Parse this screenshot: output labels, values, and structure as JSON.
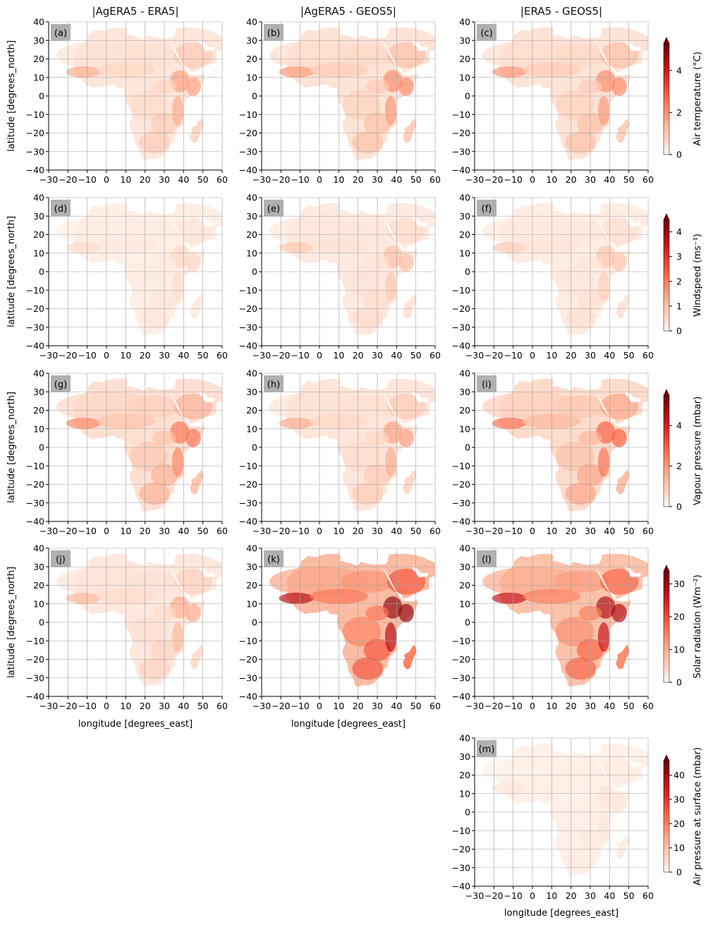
{
  "figure": {
    "column_titles": [
      "|AgERA5 - ERA5|",
      "|AgERA5 - GEOS5|",
      "|ERA5 - GEOS5|"
    ],
    "ylabel": "latitude [degrees_north]",
    "xlabel": "longitude [degrees_east]"
  },
  "chart_data": [
    {
      "type": "heatmap",
      "panel_label": "(a)",
      "title": "|AgERA5 - ERA5|",
      "variable": "Air temperature",
      "xlim": [
        -30,
        60
      ],
      "ylim": [
        -40,
        40
      ],
      "intensity": 0.25
    },
    {
      "type": "heatmap",
      "panel_label": "(b)",
      "title": "|AgERA5 - GEOS5|",
      "variable": "Air temperature",
      "xlim": [
        -30,
        60
      ],
      "ylim": [
        -40,
        40
      ],
      "intensity": 0.3
    },
    {
      "type": "heatmap",
      "panel_label": "(c)",
      "title": "|ERA5 - GEOS5|",
      "variable": "Air temperature",
      "xlim": [
        -30,
        60
      ],
      "ylim": [
        -40,
        40
      ],
      "intensity": 0.3
    },
    {
      "type": "heatmap",
      "panel_label": "(d)",
      "variable": "Windspeed",
      "xlim": [
        -30,
        60
      ],
      "ylim": [
        -40,
        40
      ],
      "intensity": 0.12
    },
    {
      "type": "heatmap",
      "panel_label": "(e)",
      "variable": "Windspeed",
      "xlim": [
        -30,
        60
      ],
      "ylim": [
        -40,
        40
      ],
      "intensity": 0.18
    },
    {
      "type": "heatmap",
      "panel_label": "(f)",
      "variable": "Windspeed",
      "xlim": [
        -30,
        60
      ],
      "ylim": [
        -40,
        40
      ],
      "intensity": 0.16
    },
    {
      "type": "heatmap",
      "panel_label": "(g)",
      "variable": "Vapour pressure",
      "xlim": [
        -30,
        60
      ],
      "ylim": [
        -40,
        40
      ],
      "intensity": 0.35
    },
    {
      "type": "heatmap",
      "panel_label": "(h)",
      "variable": "Vapour pressure",
      "xlim": [
        -30,
        60
      ],
      "ylim": [
        -40,
        40
      ],
      "intensity": 0.25
    },
    {
      "type": "heatmap",
      "panel_label": "(i)",
      "variable": "Vapour pressure",
      "xlim": [
        -30,
        60
      ],
      "ylim": [
        -40,
        40
      ],
      "intensity": 0.4
    },
    {
      "type": "heatmap",
      "panel_label": "(j)",
      "variable": "Solar radiation",
      "xlim": [
        -30,
        60
      ],
      "ylim": [
        -40,
        40
      ],
      "intensity": 0.22
    },
    {
      "type": "heatmap",
      "panel_label": "(k)",
      "variable": "Solar radiation",
      "xlim": [
        -30,
        60
      ],
      "ylim": [
        -40,
        40
      ],
      "intensity": 0.7
    },
    {
      "type": "heatmap",
      "panel_label": "(l)",
      "variable": "Solar radiation",
      "xlim": [
        -30,
        60
      ],
      "ylim": [
        -40,
        40
      ],
      "intensity": 0.65
    },
    {
      "type": "heatmap",
      "panel_label": "(m)",
      "variable": "Air pressure at surface",
      "xlim": [
        -30,
        60
      ],
      "ylim": [
        -40,
        40
      ],
      "intensity": 0.08
    }
  ],
  "axes": {
    "x_ticks": [
      "−30",
      "−20",
      "−10",
      "0",
      "10",
      "20",
      "30",
      "40",
      "50",
      "60"
    ],
    "y_ticks": [
      "40",
      "30",
      "20",
      "10",
      "0",
      "−10",
      "−20",
      "−30",
      "−40"
    ]
  },
  "colorbars": [
    {
      "label": "Air temperature (°C)",
      "max": 5.3,
      "ticks": [
        0,
        2,
        4
      ],
      "colormap": "Reds",
      "extend": "max"
    },
    {
      "label": "Windspeed (ms⁻¹)",
      "max": 4.5,
      "ticks": [
        0,
        1,
        2,
        3,
        4
      ],
      "colormap": "Reds",
      "extend": "max"
    },
    {
      "label": "Vapour pressure (mbar)",
      "max": 5.5,
      "ticks": [
        0,
        2,
        4
      ],
      "colormap": "Reds",
      "extend": "max"
    },
    {
      "label": "Solar radiation (Wm⁻²)",
      "max": 34,
      "ticks": [
        0,
        10,
        20,
        30
      ],
      "colormap": "Reds",
      "extend": "max"
    },
    {
      "label": "Air pressure at surface (mbar)",
      "max": 46,
      "ticks": [
        0,
        10,
        20,
        30,
        40
      ],
      "colormap": "Reds",
      "extend": "max"
    }
  ],
  "colors": {
    "low": "#fff5f0",
    "mid": "#fb6a4a",
    "high": "#67000d",
    "grid": "#a0a0a0",
    "label_box": "#b0b0b0"
  }
}
